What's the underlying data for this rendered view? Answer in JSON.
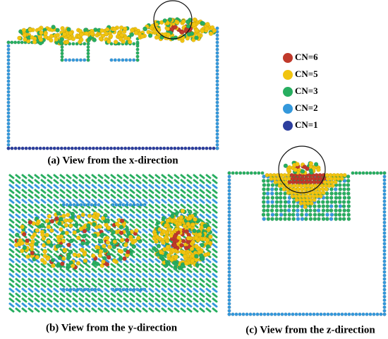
{
  "legend": [
    {
      "label": "CN=6",
      "color": "#c0392b"
    },
    {
      "label": "CN=5",
      "color": "#f1c40f"
    },
    {
      "label": "CN=3",
      "color": "#27ae60"
    },
    {
      "label": "CN=2",
      "color": "#3498db"
    },
    {
      "label": "CN=1",
      "color": "#2c3e9e"
    }
  ],
  "panels": [
    {
      "caption": "(a) View from the x-direction"
    },
    {
      "caption": "(b) View from the y-direction"
    },
    {
      "caption": "(c) View from the z-direction"
    }
  ]
}
